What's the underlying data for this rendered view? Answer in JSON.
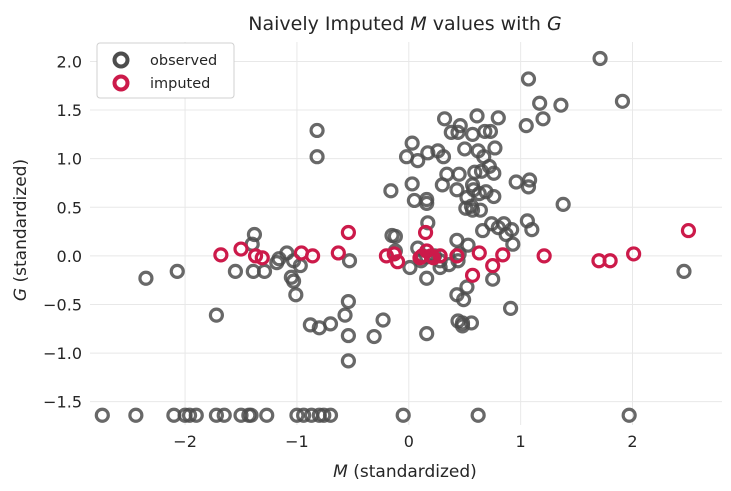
{
  "chart_data": {
    "type": "scatter",
    "title_parts": [
      "Naively Imputed ",
      "M",
      " values with ",
      "G"
    ],
    "xlabel_parts": [
      "M",
      " (standardized)"
    ],
    "ylabel_parts": [
      "G",
      " (standardized)"
    ],
    "xlim": [
      -2.85,
      2.8
    ],
    "ylim": [
      -1.74,
      2.2
    ],
    "xticks": [
      -2,
      -1,
      0,
      1,
      2
    ],
    "xtick_labels": [
      "−2",
      "−1",
      "0",
      "1",
      "2"
    ],
    "yticks": [
      -1.5,
      -1.0,
      -0.5,
      0.0,
      0.5,
      1.0,
      1.5,
      2.0
    ],
    "ytick_labels": [
      "−1.5",
      "−1.0",
      "−0.5",
      "0.0",
      "0.5",
      "1.0",
      "1.5",
      "2.0"
    ],
    "grid": true,
    "legend_position": "top-left",
    "series": [
      {
        "name": "observed",
        "color": "#4d4d4d",
        "points": [
          [
            1.71,
            2.03
          ],
          [
            1.07,
            1.82
          ],
          [
            1.91,
            1.59
          ],
          [
            1.36,
            1.55
          ],
          [
            1.17,
            1.57
          ],
          [
            0.8,
            1.42
          ],
          [
            0.61,
            1.44
          ],
          [
            0.32,
            1.41
          ],
          [
            0.46,
            1.34
          ],
          [
            1.2,
            1.41
          ],
          [
            1.05,
            1.34
          ],
          [
            -0.82,
            1.29
          ],
          [
            0.68,
            1.28
          ],
          [
            0.38,
            1.27
          ],
          [
            0.44,
            1.27
          ],
          [
            0.57,
            1.25
          ],
          [
            0.73,
            1.28
          ],
          [
            0.03,
            1.16
          ],
          [
            0.5,
            1.1
          ],
          [
            0.77,
            1.11
          ],
          [
            0.62,
            1.08
          ],
          [
            0.17,
            1.06
          ],
          [
            0.26,
            1.08
          ],
          [
            0.67,
            1.02
          ],
          [
            -0.82,
            1.02
          ],
          [
            -0.02,
            1.02
          ],
          [
            0.08,
            0.98
          ],
          [
            0.31,
            1.02
          ],
          [
            0.72,
            0.92
          ],
          [
            0.59,
            0.86
          ],
          [
            0.65,
            0.87
          ],
          [
            0.34,
            0.84
          ],
          [
            0.45,
            0.84
          ],
          [
            0.76,
            0.85
          ],
          [
            0.03,
            0.74
          ],
          [
            0.3,
            0.73
          ],
          [
            0.57,
            0.73
          ],
          [
            1.07,
            0.71
          ],
          [
            0.58,
            0.68
          ],
          [
            0.43,
            0.68
          ],
          [
            0.69,
            0.66
          ],
          [
            -0.16,
            0.67
          ],
          [
            1.08,
            0.78
          ],
          [
            0.96,
            0.76
          ],
          [
            0.52,
            0.6
          ],
          [
            0.63,
            0.64
          ],
          [
            0.16,
            0.58
          ],
          [
            0.76,
            0.61
          ],
          [
            0.05,
            0.57
          ],
          [
            0.56,
            0.51
          ],
          [
            0.16,
            0.54
          ],
          [
            1.38,
            0.53
          ],
          [
            0.57,
            0.47
          ],
          [
            0.51,
            0.49
          ],
          [
            0.64,
            0.47
          ],
          [
            0.17,
            0.34
          ],
          [
            0.74,
            0.33
          ],
          [
            0.85,
            0.33
          ],
          [
            1.06,
            0.36
          ],
          [
            0.8,
            0.29
          ],
          [
            0.92,
            0.27
          ],
          [
            0.66,
            0.26
          ],
          [
            0.87,
            0.22
          ],
          [
            1.1,
            0.27
          ],
          [
            0.93,
            0.12
          ],
          [
            -0.12,
            0.2
          ],
          [
            -0.15,
            0.21
          ],
          [
            -1.38,
            0.22
          ],
          [
            -1.4,
            0.12
          ],
          [
            0.43,
            0.16
          ],
          [
            0.53,
            0.11
          ],
          [
            0.45,
            0.02
          ],
          [
            0.08,
            0.08
          ],
          [
            -0.12,
            0.05
          ],
          [
            -1.09,
            0.03
          ],
          [
            0.16,
            -0.01
          ],
          [
            0.23,
            0.0
          ],
          [
            0.11,
            -0.05
          ],
          [
            -1.16,
            -0.03
          ],
          [
            -1.18,
            -0.07
          ],
          [
            -0.53,
            -0.05
          ],
          [
            0.28,
            -0.05
          ],
          [
            0.36,
            -0.09
          ],
          [
            0.44,
            -0.05
          ],
          [
            0.01,
            -0.12
          ],
          [
            0.28,
            -0.12
          ],
          [
            -1.03,
            -0.05
          ],
          [
            -0.97,
            -0.1
          ],
          [
            -1.29,
            -0.16
          ],
          [
            -1.39,
            -0.16
          ],
          [
            -1.55,
            -0.16
          ],
          [
            -2.07,
            -0.16
          ],
          [
            -2.35,
            -0.23
          ],
          [
            0.16,
            -0.23
          ],
          [
            0.75,
            -0.24
          ],
          [
            -1.05,
            -0.22
          ],
          [
            -1.03,
            -0.26
          ],
          [
            2.46,
            -0.16
          ],
          [
            0.52,
            -0.32
          ],
          [
            0.43,
            -0.4
          ],
          [
            0.49,
            -0.45
          ],
          [
            -1.01,
            -0.4
          ],
          [
            -0.54,
            -0.47
          ],
          [
            0.91,
            -0.54
          ],
          [
            -1.72,
            -0.61
          ],
          [
            -0.57,
            -0.61
          ],
          [
            -0.23,
            -0.66
          ],
          [
            0.44,
            -0.67
          ],
          [
            0.48,
            -0.69
          ],
          [
            0.56,
            -0.69
          ],
          [
            0.48,
            -0.72
          ],
          [
            -0.88,
            -0.71
          ],
          [
            -0.7,
            -0.7
          ],
          [
            -0.8,
            -0.74
          ],
          [
            0.16,
            -0.8
          ],
          [
            -0.54,
            -0.82
          ],
          [
            -0.31,
            -0.83
          ],
          [
            -0.54,
            -1.08
          ],
          [
            -2.74,
            -1.64
          ],
          [
            -2.44,
            -1.64
          ],
          [
            -2.1,
            -1.64
          ],
          [
            -2.0,
            -1.64
          ],
          [
            -1.96,
            -1.64
          ],
          [
            -1.9,
            -1.64
          ],
          [
            -1.72,
            -1.64
          ],
          [
            -1.65,
            -1.64
          ],
          [
            -1.5,
            -1.64
          ],
          [
            -1.43,
            -1.64
          ],
          [
            -1.41,
            -1.64
          ],
          [
            -1.27,
            -1.64
          ],
          [
            -1.0,
            -1.64
          ],
          [
            -0.94,
            -1.64
          ],
          [
            -0.87,
            -1.64
          ],
          [
            -0.8,
            -1.64
          ],
          [
            -0.76,
            -1.64
          ],
          [
            -0.7,
            -1.64
          ],
          [
            -0.05,
            -1.64
          ],
          [
            0.62,
            -1.64
          ],
          [
            1.97,
            -1.64
          ]
        ]
      },
      {
        "name": "imputed",
        "color": "#cc1a4a",
        "points": [
          [
            2.5,
            0.26
          ],
          [
            2.01,
            0.02
          ],
          [
            1.8,
            -0.05
          ],
          [
            1.7,
            -0.05
          ],
          [
            1.21,
            0.0
          ],
          [
            0.84,
            0.01
          ],
          [
            0.75,
            -0.1
          ],
          [
            0.63,
            0.03
          ],
          [
            0.57,
            -0.2
          ],
          [
            0.43,
            0.0
          ],
          [
            0.28,
            0.0
          ],
          [
            0.22,
            -0.02
          ],
          [
            0.2,
            0.0
          ],
          [
            0.16,
            0.05
          ],
          [
            0.15,
            0.24
          ],
          [
            0.12,
            0.0
          ],
          [
            0.1,
            -0.02
          ],
          [
            -0.1,
            -0.06
          ],
          [
            -0.13,
            0.02
          ],
          [
            -0.2,
            0.0
          ],
          [
            -0.54,
            0.24
          ],
          [
            -0.63,
            0.03
          ],
          [
            -0.86,
            0.0
          ],
          [
            -0.96,
            0.03
          ],
          [
            -1.31,
            -0.02
          ],
          [
            -1.37,
            0.0
          ],
          [
            -1.5,
            0.07
          ],
          [
            -1.68,
            0.01
          ]
        ]
      }
    ]
  }
}
